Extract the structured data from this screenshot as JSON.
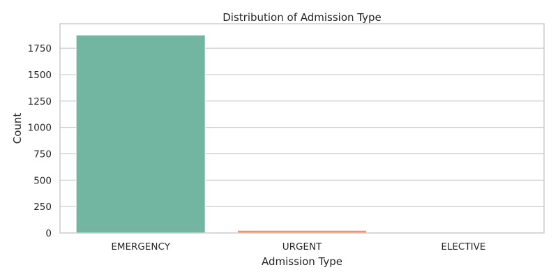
{
  "chart_data": {
    "type": "bar",
    "title": "Distribution of Admission Type",
    "xlabel": "Admission Type",
    "ylabel": "Count",
    "categories": [
      "EMERGENCY",
      "URGENT",
      "ELECTIVE"
    ],
    "values": [
      1875,
      25,
      1
    ],
    "colors": [
      "#72b6a1",
      "#e99675",
      "#8da0cb"
    ],
    "ylim": [
      0,
      1875
    ],
    "yticks": [
      0,
      250,
      500,
      750,
      1000,
      1250,
      1500,
      1750
    ],
    "grid": true,
    "legend": false
  }
}
